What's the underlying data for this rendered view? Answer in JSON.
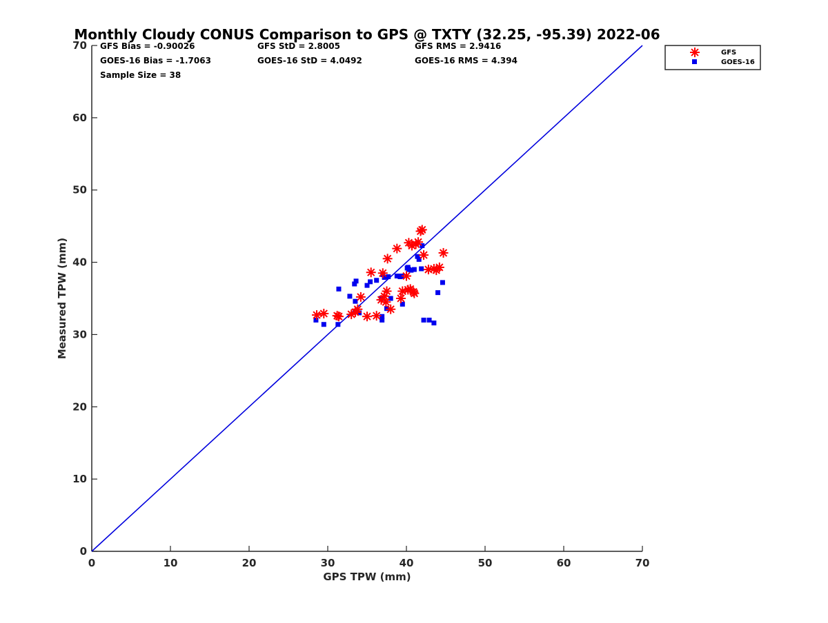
{
  "chart_data": {
    "type": "scatter",
    "title": "Monthly Cloudy CONUS Comparison to GPS @ TXTY (32.25, -95.39) 2022-06",
    "xlabel": "GPS TPW (mm)",
    "ylabel": "Measured TPW (mm)",
    "xlim": [
      0,
      70
    ],
    "ylim": [
      0,
      70
    ],
    "xticks": [
      0,
      10,
      20,
      30,
      40,
      50,
      60,
      70
    ],
    "yticks": [
      0,
      10,
      20,
      30,
      40,
      50,
      60,
      70
    ],
    "xtick_labels": [
      "0",
      "10",
      "20",
      "30",
      "40",
      "50",
      "60",
      "70"
    ],
    "ytick_labels": [
      "0",
      "10",
      "20",
      "30",
      "40",
      "50",
      "60",
      "70"
    ],
    "grid": false,
    "legend_position": "outside-top-right",
    "reference_line": {
      "name": "1:1 line",
      "color": "#0000dd",
      "x": [
        0,
        70
      ],
      "y": [
        0,
        70
      ]
    },
    "stats": [
      {
        "text": "GFS Bias = -0.90026"
      },
      {
        "text": "GFS StD = 2.8005"
      },
      {
        "text": "GFS RMS = 2.9416"
      },
      {
        "text": "GOES-16 Bias = -1.7063"
      },
      {
        "text": "GOES-16 StD = 4.0492"
      },
      {
        "text": "GOES-16 RMS = 4.394"
      },
      {
        "text": "Sample Size = 38"
      }
    ],
    "series": [
      {
        "name": "GFS",
        "marker": "asterisk",
        "color": "#ff0000",
        "x": [
          28.6,
          29.5,
          31.2,
          31.4,
          33.0,
          33.5,
          33.8,
          34.2,
          35.0,
          35.5,
          36.2,
          36.8,
          37.0,
          37.2,
          37.4,
          37.5,
          37.6,
          38.0,
          38.8,
          39.3,
          39.5,
          40.0,
          40.2,
          40.3,
          40.5,
          40.7,
          40.9,
          41.0,
          41.2,
          41.5,
          41.8,
          42.0,
          42.2,
          42.8,
          43.5,
          43.8,
          44.2,
          44.7
        ],
        "y": [
          32.7,
          32.9,
          32.6,
          32.5,
          32.8,
          33.1,
          33.5,
          35.2,
          32.5,
          38.6,
          32.6,
          34.8,
          38.5,
          35.3,
          34.5,
          36.0,
          40.5,
          33.5,
          41.9,
          35.0,
          36.0,
          38.1,
          36.2,
          42.7,
          36.3,
          42.3,
          35.9,
          35.7,
          42.5,
          42.8,
          44.3,
          44.5,
          41.0,
          39.0,
          39.1,
          38.9,
          39.3,
          41.3
        ]
      },
      {
        "name": "GOES-16",
        "marker": "square",
        "color": "#0000ee",
        "x": [
          28.5,
          29.5,
          31.3,
          31.4,
          32.8,
          33.4,
          33.5,
          33.6,
          34.0,
          35.0,
          35.4,
          36.2,
          36.8,
          36.9,
          36.9,
          37.0,
          37.2,
          37.5,
          37.7,
          38.0,
          38.8,
          39.2,
          39.4,
          39.5,
          40.1,
          40.2,
          40.3,
          40.6,
          41.0,
          41.4,
          41.6,
          41.9,
          42.0,
          42.2,
          42.9,
          43.5,
          44.0,
          44.6
        ],
        "y": [
          32.0,
          31.4,
          31.4,
          36.3,
          35.3,
          37.0,
          34.6,
          37.4,
          33.0,
          36.8,
          37.3,
          37.5,
          35.0,
          32.0,
          32.5,
          38.3,
          37.9,
          33.6,
          38.0,
          35.0,
          38.1,
          38.0,
          38.1,
          34.2,
          39.2,
          39.3,
          39.0,
          38.9,
          39.0,
          40.8,
          40.4,
          39.1,
          42.3,
          32.0,
          32.0,
          31.6,
          35.8,
          37.2
        ]
      }
    ]
  }
}
